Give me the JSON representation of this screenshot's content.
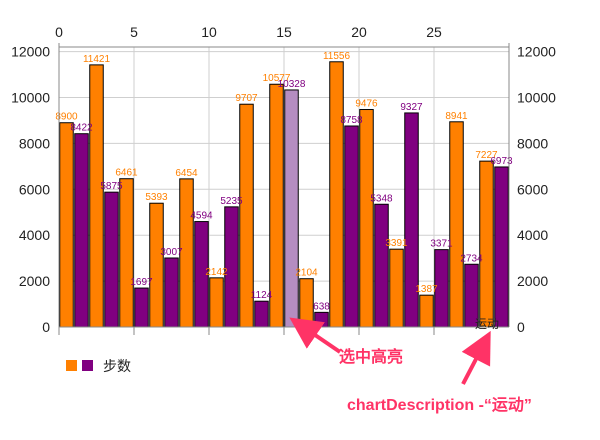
{
  "chart_data": {
    "type": "bar",
    "x": [
      1,
      2,
      3,
      4,
      5,
      6,
      7,
      8,
      9,
      10,
      11,
      12,
      13,
      14,
      15,
      16,
      17,
      18,
      19,
      20,
      21,
      22,
      23,
      24,
      25,
      26,
      27,
      28,
      29,
      30
    ],
    "series": [
      {
        "name": "步数",
        "color": "#ff8000",
        "x": [
          1,
          3,
          5,
          7,
          9,
          11,
          13,
          15,
          17,
          19,
          21,
          23,
          25,
          27,
          29
        ],
        "values": [
          8900,
          11421,
          6461,
          5393,
          6454,
          2142,
          9707,
          10577,
          2104,
          11556,
          9476,
          3391,
          1387,
          8941,
          7227
        ]
      },
      {
        "name": "",
        "color": "#800080",
        "x": [
          2,
          4,
          6,
          8,
          10,
          12,
          14,
          16,
          18,
          20,
          22,
          24,
          26,
          28,
          30
        ],
        "values": [
          8422,
          5875,
          1697,
          3007,
          4594,
          5235,
          1124,
          10328,
          638,
          8758,
          5348,
          9327,
          3371,
          2734,
          6973
        ]
      }
    ],
    "highlight": {
      "x": 16,
      "value": 10328,
      "color": "#b58dc1"
    },
    "x_ticks": [
      0,
      5,
      10,
      15,
      20,
      25
    ],
    "y_ticks": [
      0,
      2000,
      4000,
      6000,
      8000,
      10000,
      12000
    ],
    "xlim": [
      0,
      30
    ],
    "ylim": [
      0,
      12200
    ],
    "grid": true,
    "x_axis_position": "top",
    "legend_position": "bottom-left",
    "description": "运动"
  },
  "annotations": [
    {
      "label": "选中高亮",
      "color": "#ff3366"
    },
    {
      "label": "chartDescription -“运动”",
      "color": "#ff3366"
    }
  ]
}
